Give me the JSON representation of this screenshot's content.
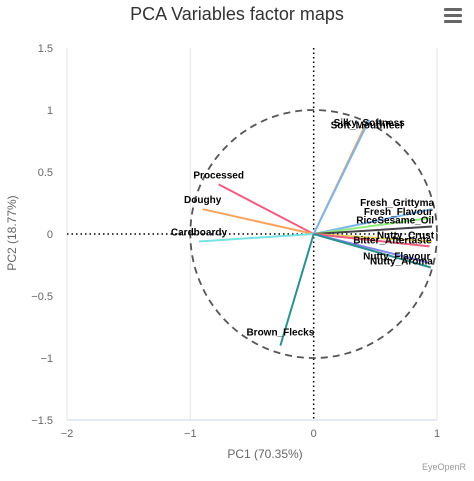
{
  "title": "PCA Variables factor maps",
  "credit": "EyeOpenR",
  "menu": {
    "icon": "hamburger-menu-icon"
  },
  "chart_data": {
    "type": "scatter",
    "title": "PCA Variables factor maps",
    "xlabel": "PC1 (70.35%)",
    "ylabel": "PC2 (18.77%)",
    "xlim": [
      -2,
      1
    ],
    "ylim": [
      -1.5,
      1.5
    ],
    "x_ticks": [
      -2,
      -1,
      0,
      1
    ],
    "y_ticks": [
      1.5,
      1,
      0.5,
      0,
      -0.5,
      -1,
      -1.5
    ],
    "grid": "vertical",
    "legend": "none",
    "correlation_circle": {
      "center": [
        0,
        0
      ],
      "radius": 1
    },
    "variables": [
      {
        "name": "Soft_Mouthfeel",
        "x": 0.43,
        "y": 0.9,
        "color": "#f7a35c"
      },
      {
        "name": "Silky_Softness",
        "x": 0.45,
        "y": 0.92,
        "color": "#7cb5ec"
      },
      {
        "name": "Processed",
        "x": -0.77,
        "y": 0.4,
        "color": "#f15c80"
      },
      {
        "name": "Doughy",
        "x": -0.9,
        "y": 0.2,
        "color": "#f7a35c"
      },
      {
        "name": "Cardboardy",
        "x": -0.93,
        "y": -0.06,
        "color": "#76e3e0"
      },
      {
        "name": "Brown_Flecks",
        "x": -0.27,
        "y": -0.9,
        "color": "#2b908f"
      },
      {
        "name": "Fresh_Grittyma",
        "x": 0.96,
        "y": 0.2,
        "color": "#7cb5ec"
      },
      {
        "name": "Fresh_Flavour",
        "x": 0.95,
        "y": 0.13,
        "color": "#90ed7d"
      },
      {
        "name": "RiceSesame_Oil",
        "x": 0.96,
        "y": 0.06,
        "color": "#434348"
      },
      {
        "name": "Nutty_Crust",
        "x": 0.96,
        "y": -0.06,
        "color": "#e4d354"
      },
      {
        "name": "Bitter_Aftertaste",
        "x": 0.94,
        "y": -0.1,
        "color": "#f15c80"
      },
      {
        "name": "Nutty_Flavour",
        "x": 0.93,
        "y": -0.23,
        "color": "#8085e9"
      },
      {
        "name": "Nutty_Aroma",
        "x": 0.95,
        "y": -0.27,
        "color": "#2b908f"
      }
    ]
  }
}
